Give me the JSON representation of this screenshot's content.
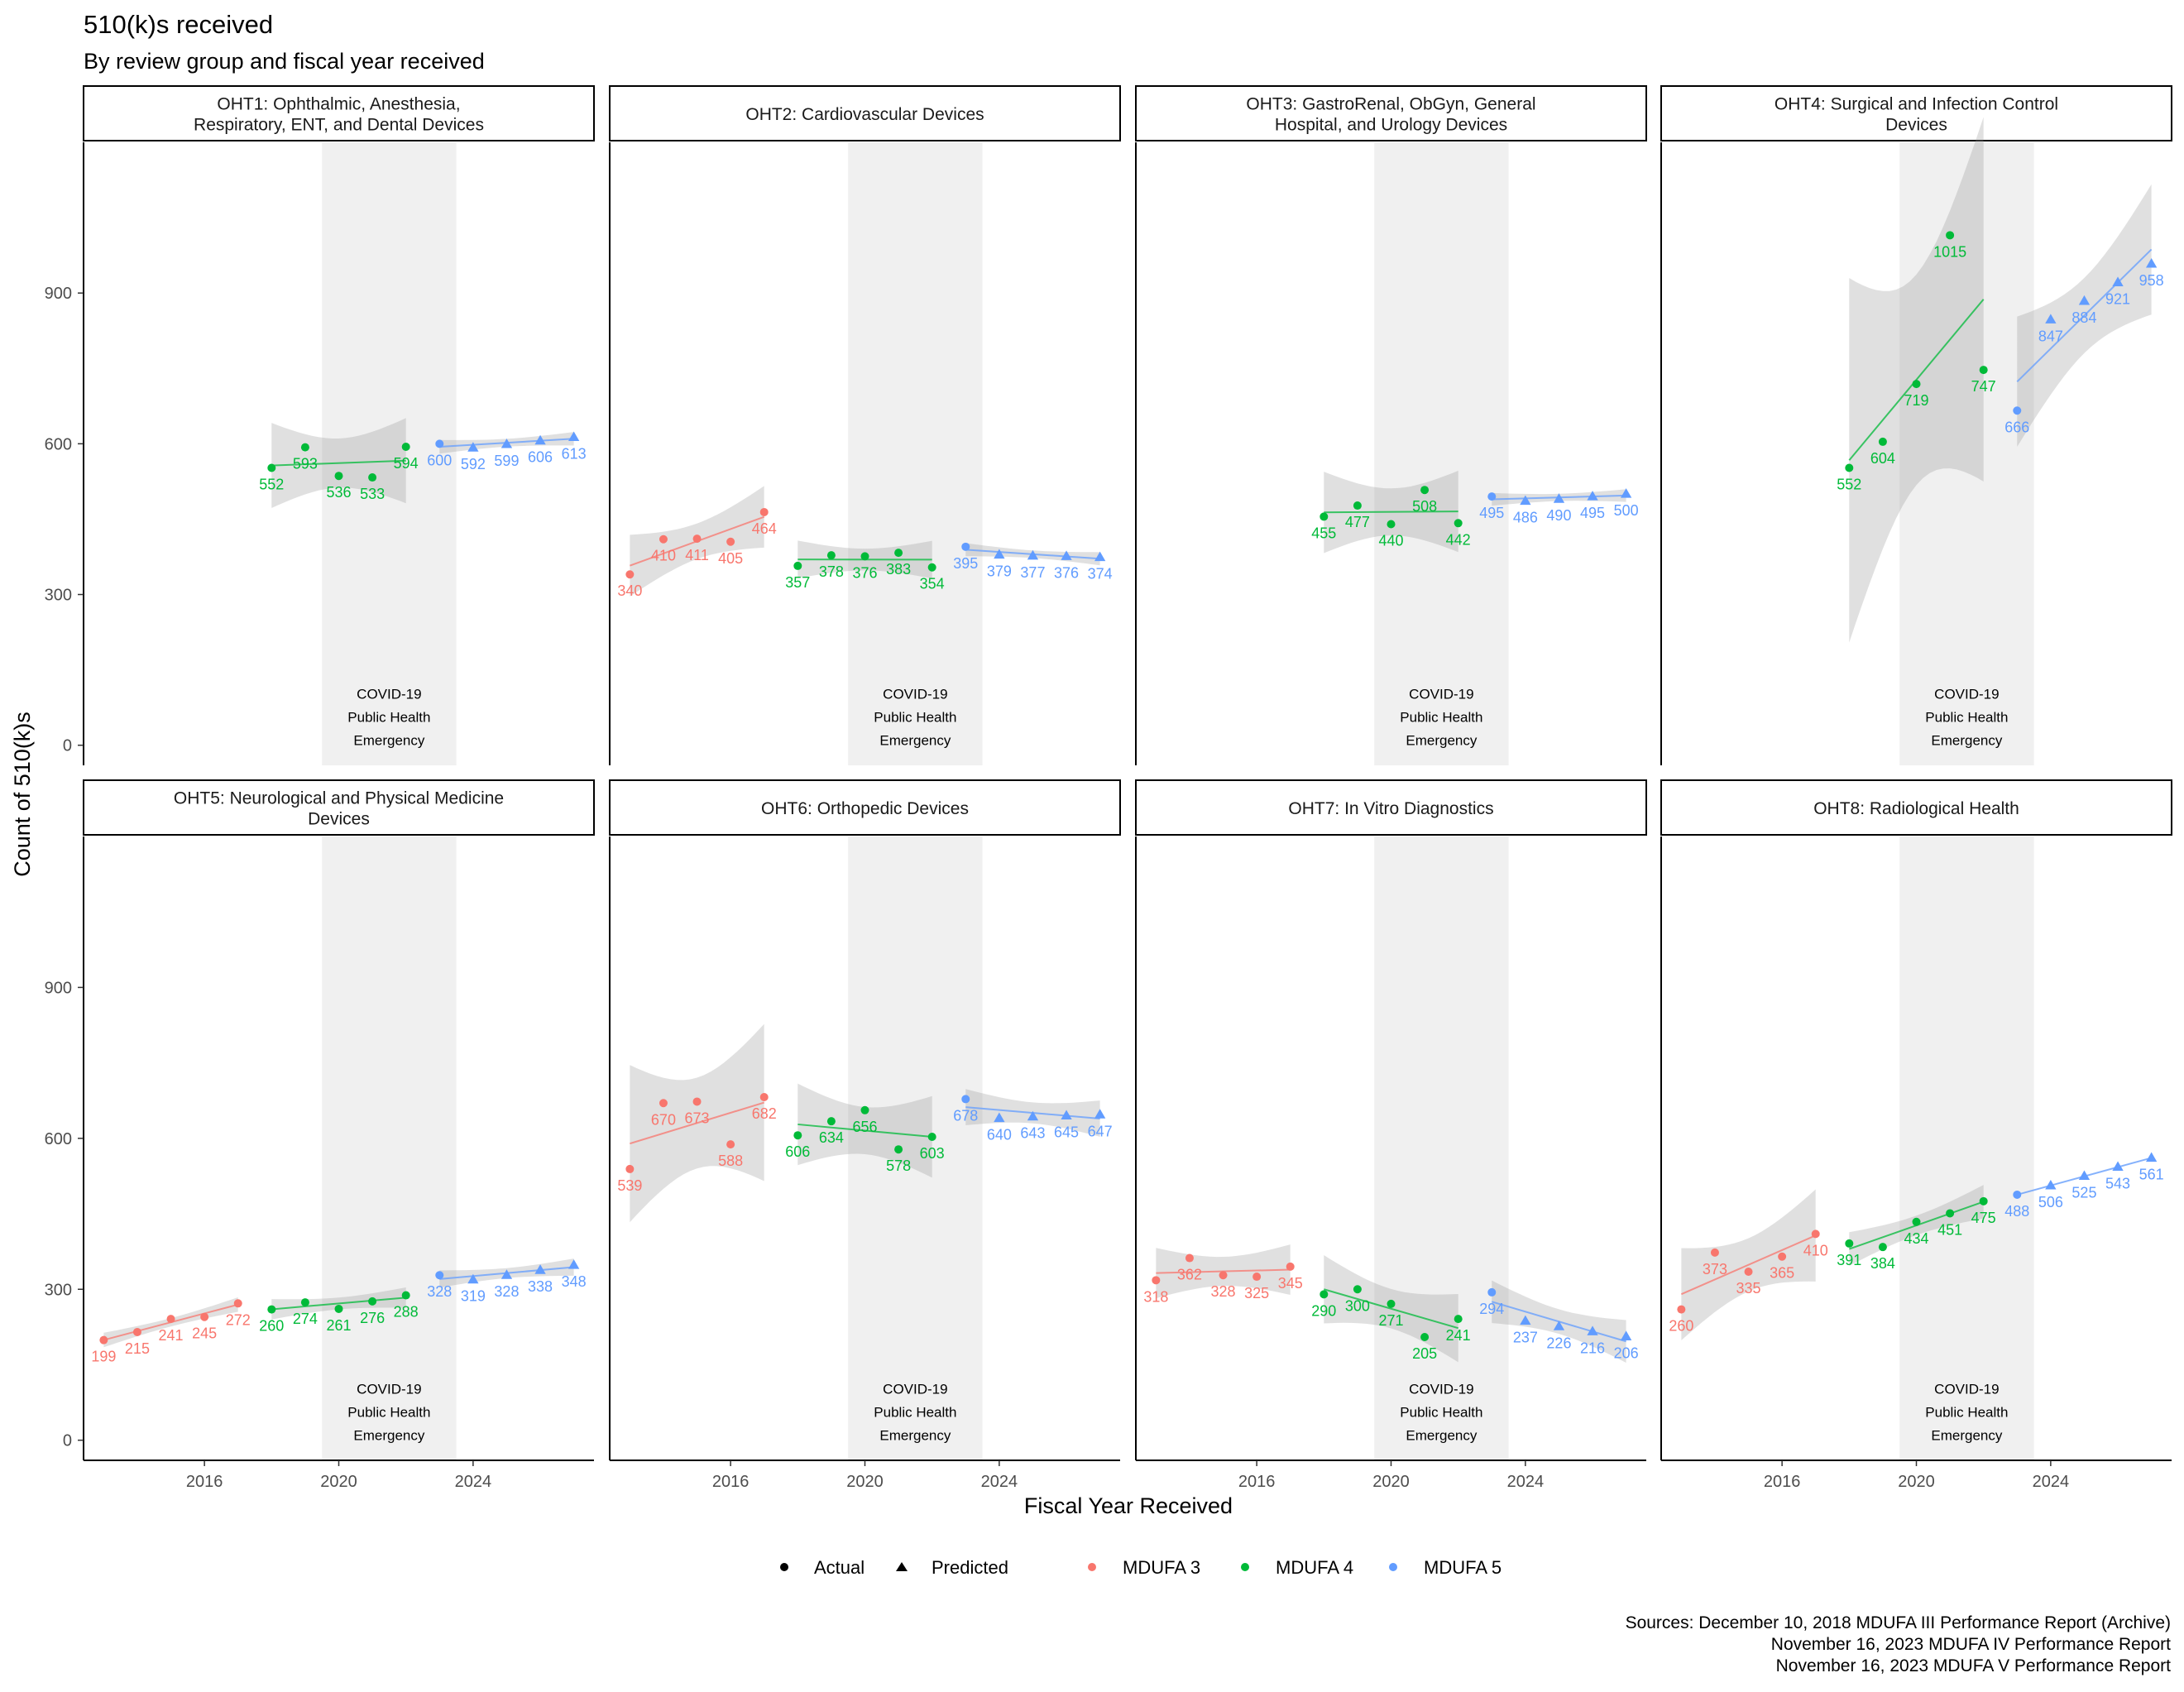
{
  "header": {
    "title": "510(k)s received",
    "subtitle": "By review group and fiscal year received"
  },
  "axes": {
    "xlabel": "Fiscal Year Received",
    "ylabel": "Count of 510(k)s"
  },
  "sources": [
    "Sources: December 10, 2018 MDUFA III Performance Report (Archive)",
    "November 16, 2023 MDUFA IV Performance Report",
    "November 16, 2023 MDUFA V Performance Report"
  ],
  "legend": {
    "shape_entries": [
      {
        "label": "Actual",
        "shape": "circle"
      },
      {
        "label": "Predicted",
        "shape": "triangle"
      }
    ],
    "color_entries": [
      {
        "label": "MDUFA 3",
        "color": "#F8766D"
      },
      {
        "label": "MDUFA 4",
        "color": "#00BA38"
      },
      {
        "label": "MDUFA 5",
        "color": "#619CFF"
      }
    ],
    "placement": "bottom"
  },
  "covid_band": {
    "label_lines": [
      "COVID-19",
      "Public Health",
      "Emergency"
    ],
    "x_start": 2019.5,
    "x_end": 2023.5
  },
  "chart_data": {
    "type": "scatter",
    "layout": "facet_grid_2x4",
    "grid": false,
    "xlim": [
      2012.4,
      2027.6
    ],
    "ylim": [
      -40,
      1200
    ],
    "x_ticks": [
      2016,
      2020,
      2024
    ],
    "y_ticks": [
      0,
      300,
      600,
      900
    ],
    "panels": [
      {
        "title_lines": [
          "OHT1: Ophthalmic, Anesthesia,",
          "Respiratory, ENT, and Dental Devices"
        ],
        "series": [
          {
            "name": "MDUFA 4",
            "color": "#00BA38",
            "points": [
              {
                "x": 2018,
                "y": 552,
                "kind": "Actual"
              },
              {
                "x": 2019,
                "y": 593,
                "kind": "Actual"
              },
              {
                "x": 2020,
                "y": 536,
                "kind": "Actual"
              },
              {
                "x": 2021,
                "y": 533,
                "kind": "Actual"
              },
              {
                "x": 2022,
                "y": 594,
                "kind": "Actual"
              }
            ]
          },
          {
            "name": "MDUFA 5",
            "color": "#619CFF",
            "points": [
              {
                "x": 2023,
                "y": 600,
                "kind": "Actual"
              },
              {
                "x": 2024,
                "y": 592,
                "kind": "Predicted"
              },
              {
                "x": 2025,
                "y": 599,
                "kind": "Predicted"
              },
              {
                "x": 2026,
                "y": 606,
                "kind": "Predicted"
              },
              {
                "x": 2027,
                "y": 613,
                "kind": "Predicted"
              }
            ]
          }
        ]
      },
      {
        "title_lines": [
          "OHT2: Cardiovascular Devices"
        ],
        "series": [
          {
            "name": "MDUFA 3",
            "color": "#F8766D",
            "points": [
              {
                "x": 2013,
                "y": 340,
                "kind": "Actual"
              },
              {
                "x": 2014,
                "y": 410,
                "kind": "Actual"
              },
              {
                "x": 2015,
                "y": 411,
                "kind": "Actual"
              },
              {
                "x": 2016,
                "y": 405,
                "kind": "Actual"
              },
              {
                "x": 2017,
                "y": 464,
                "kind": "Actual"
              }
            ]
          },
          {
            "name": "MDUFA 4",
            "color": "#00BA38",
            "points": [
              {
                "x": 2018,
                "y": 357,
                "kind": "Actual"
              },
              {
                "x": 2019,
                "y": 378,
                "kind": "Actual"
              },
              {
                "x": 2020,
                "y": 376,
                "kind": "Actual"
              },
              {
                "x": 2021,
                "y": 383,
                "kind": "Actual"
              },
              {
                "x": 2022,
                "y": 354,
                "kind": "Actual"
              }
            ]
          },
          {
            "name": "MDUFA 5",
            "color": "#619CFF",
            "points": [
              {
                "x": 2023,
                "y": 395,
                "kind": "Actual"
              },
              {
                "x": 2024,
                "y": 379,
                "kind": "Predicted"
              },
              {
                "x": 2025,
                "y": 377,
                "kind": "Predicted"
              },
              {
                "x": 2026,
                "y": 376,
                "kind": "Predicted"
              },
              {
                "x": 2027,
                "y": 374,
                "kind": "Predicted"
              }
            ]
          }
        ]
      },
      {
        "title_lines": [
          "OHT3: GastroRenal, ObGyn, General",
          "Hospital, and Urology Devices"
        ],
        "series": [
          {
            "name": "MDUFA 4",
            "color": "#00BA38",
            "points": [
              {
                "x": 2018,
                "y": 455,
                "kind": "Actual"
              },
              {
                "x": 2019,
                "y": 477,
                "kind": "Actual"
              },
              {
                "x": 2020,
                "y": 440,
                "kind": "Actual"
              },
              {
                "x": 2021,
                "y": 508,
                "kind": "Actual"
              },
              {
                "x": 2022,
                "y": 442,
                "kind": "Actual"
              }
            ]
          },
          {
            "name": "MDUFA 5",
            "color": "#619CFF",
            "points": [
              {
                "x": 2023,
                "y": 495,
                "kind": "Actual"
              },
              {
                "x": 2024,
                "y": 486,
                "kind": "Predicted"
              },
              {
                "x": 2025,
                "y": 490,
                "kind": "Predicted"
              },
              {
                "x": 2026,
                "y": 495,
                "kind": "Predicted"
              },
              {
                "x": 2027,
                "y": 500,
                "kind": "Predicted"
              }
            ]
          }
        ]
      },
      {
        "title_lines": [
          "OHT4: Surgical and Infection Control",
          "Devices"
        ],
        "series": [
          {
            "name": "MDUFA 4",
            "color": "#00BA38",
            "points": [
              {
                "x": 2018,
                "y": 552,
                "kind": "Actual"
              },
              {
                "x": 2019,
                "y": 604,
                "kind": "Actual"
              },
              {
                "x": 2020,
                "y": 719,
                "kind": "Actual"
              },
              {
                "x": 2021,
                "y": 1015,
                "kind": "Actual"
              },
              {
                "x": 2022,
                "y": 747,
                "kind": "Actual"
              }
            ]
          },
          {
            "name": "MDUFA 5",
            "color": "#619CFF",
            "points": [
              {
                "x": 2023,
                "y": 666,
                "kind": "Actual"
              },
              {
                "x": 2024,
                "y": 847,
                "kind": "Predicted"
              },
              {
                "x": 2025,
                "y": 884,
                "kind": "Predicted"
              },
              {
                "x": 2026,
                "y": 921,
                "kind": "Predicted"
              },
              {
                "x": 2027,
                "y": 958,
                "kind": "Predicted"
              }
            ]
          }
        ]
      },
      {
        "title_lines": [
          "OHT5: Neurological and Physical Medicine",
          "Devices"
        ],
        "series": [
          {
            "name": "MDUFA 3",
            "color": "#F8766D",
            "points": [
              {
                "x": 2013,
                "y": 199,
                "kind": "Actual"
              },
              {
                "x": 2014,
                "y": 215,
                "kind": "Actual"
              },
              {
                "x": 2015,
                "y": 241,
                "kind": "Actual"
              },
              {
                "x": 2016,
                "y": 245,
                "kind": "Actual"
              },
              {
                "x": 2017,
                "y": 272,
                "kind": "Actual"
              }
            ]
          },
          {
            "name": "MDUFA 4",
            "color": "#00BA38",
            "points": [
              {
                "x": 2018,
                "y": 260,
                "kind": "Actual"
              },
              {
                "x": 2019,
                "y": 274,
                "kind": "Actual"
              },
              {
                "x": 2020,
                "y": 261,
                "kind": "Actual"
              },
              {
                "x": 2021,
                "y": 276,
                "kind": "Actual"
              },
              {
                "x": 2022,
                "y": 288,
                "kind": "Actual"
              }
            ]
          },
          {
            "name": "MDUFA 5",
            "color": "#619CFF",
            "points": [
              {
                "x": 2023,
                "y": 328,
                "kind": "Actual"
              },
              {
                "x": 2024,
                "y": 319,
                "kind": "Predicted"
              },
              {
                "x": 2025,
                "y": 328,
                "kind": "Predicted"
              },
              {
                "x": 2026,
                "y": 338,
                "kind": "Predicted"
              },
              {
                "x": 2027,
                "y": 348,
                "kind": "Predicted"
              }
            ]
          }
        ]
      },
      {
        "title_lines": [
          "OHT6: Orthopedic Devices"
        ],
        "series": [
          {
            "name": "MDUFA 3",
            "color": "#F8766D",
            "points": [
              {
                "x": 2013,
                "y": 539,
                "kind": "Actual"
              },
              {
                "x": 2014,
                "y": 670,
                "kind": "Actual"
              },
              {
                "x": 2015,
                "y": 673,
                "kind": "Actual"
              },
              {
                "x": 2016,
                "y": 588,
                "kind": "Actual"
              },
              {
                "x": 2017,
                "y": 682,
                "kind": "Actual"
              }
            ]
          },
          {
            "name": "MDUFA 4",
            "color": "#00BA38",
            "points": [
              {
                "x": 2018,
                "y": 606,
                "kind": "Actual"
              },
              {
                "x": 2019,
                "y": 634,
                "kind": "Actual"
              },
              {
                "x": 2020,
                "y": 656,
                "kind": "Actual"
              },
              {
                "x": 2021,
                "y": 578,
                "kind": "Actual"
              },
              {
                "x": 2022,
                "y": 603,
                "kind": "Actual"
              }
            ]
          },
          {
            "name": "MDUFA 5",
            "color": "#619CFF",
            "points": [
              {
                "x": 2023,
                "y": 678,
                "kind": "Actual"
              },
              {
                "x": 2024,
                "y": 640,
                "kind": "Predicted"
              },
              {
                "x": 2025,
                "y": 643,
                "kind": "Predicted"
              },
              {
                "x": 2026,
                "y": 645,
                "kind": "Predicted"
              },
              {
                "x": 2027,
                "y": 647,
                "kind": "Predicted"
              }
            ]
          }
        ]
      },
      {
        "title_lines": [
          "OHT7: In Vitro Diagnostics"
        ],
        "series": [
          {
            "name": "MDUFA 3",
            "color": "#F8766D",
            "points": [
              {
                "x": 2013,
                "y": 318,
                "kind": "Actual"
              },
              {
                "x": 2014,
                "y": 362,
                "kind": "Actual"
              },
              {
                "x": 2015,
                "y": 328,
                "kind": "Actual"
              },
              {
                "x": 2016,
                "y": 325,
                "kind": "Actual"
              },
              {
                "x": 2017,
                "y": 345,
                "kind": "Actual"
              }
            ]
          },
          {
            "name": "MDUFA 4",
            "color": "#00BA38",
            "points": [
              {
                "x": 2018,
                "y": 290,
                "kind": "Actual"
              },
              {
                "x": 2019,
                "y": 300,
                "kind": "Actual"
              },
              {
                "x": 2020,
                "y": 271,
                "kind": "Actual"
              },
              {
                "x": 2021,
                "y": 205,
                "kind": "Actual"
              },
              {
                "x": 2022,
                "y": 241,
                "kind": "Actual"
              }
            ]
          },
          {
            "name": "MDUFA 5",
            "color": "#619CFF",
            "points": [
              {
                "x": 2023,
                "y": 294,
                "kind": "Actual"
              },
              {
                "x": 2024,
                "y": 237,
                "kind": "Predicted"
              },
              {
                "x": 2025,
                "y": 226,
                "kind": "Predicted"
              },
              {
                "x": 2026,
                "y": 216,
                "kind": "Predicted"
              },
              {
                "x": 2027,
                "y": 206,
                "kind": "Predicted"
              }
            ]
          }
        ]
      },
      {
        "title_lines": [
          "OHT8: Radiological Health"
        ],
        "series": [
          {
            "name": "MDUFA 3",
            "color": "#F8766D",
            "points": [
              {
                "x": 2013,
                "y": 260,
                "kind": "Actual"
              },
              {
                "x": 2014,
                "y": 373,
                "kind": "Actual"
              },
              {
                "x": 2015,
                "y": 335,
                "kind": "Actual"
              },
              {
                "x": 2016,
                "y": 365,
                "kind": "Actual"
              },
              {
                "x": 2017,
                "y": 410,
                "kind": "Actual"
              }
            ]
          },
          {
            "name": "MDUFA 4",
            "color": "#00BA38",
            "points": [
              {
                "x": 2018,
                "y": 391,
                "kind": "Actual"
              },
              {
                "x": 2019,
                "y": 384,
                "kind": "Actual"
              },
              {
                "x": 2020,
                "y": 434,
                "kind": "Actual"
              },
              {
                "x": 2021,
                "y": 451,
                "kind": "Actual"
              },
              {
                "x": 2022,
                "y": 475,
                "kind": "Actual"
              }
            ]
          },
          {
            "name": "MDUFA 5",
            "color": "#619CFF",
            "points": [
              {
                "x": 2023,
                "y": 488,
                "kind": "Actual"
              },
              {
                "x": 2024,
                "y": 506,
                "kind": "Predicted"
              },
              {
                "x": 2025,
                "y": 525,
                "kind": "Predicted"
              },
              {
                "x": 2026,
                "y": 543,
                "kind": "Predicted"
              },
              {
                "x": 2027,
                "y": 561,
                "kind": "Predicted"
              }
            ]
          }
        ]
      }
    ]
  }
}
